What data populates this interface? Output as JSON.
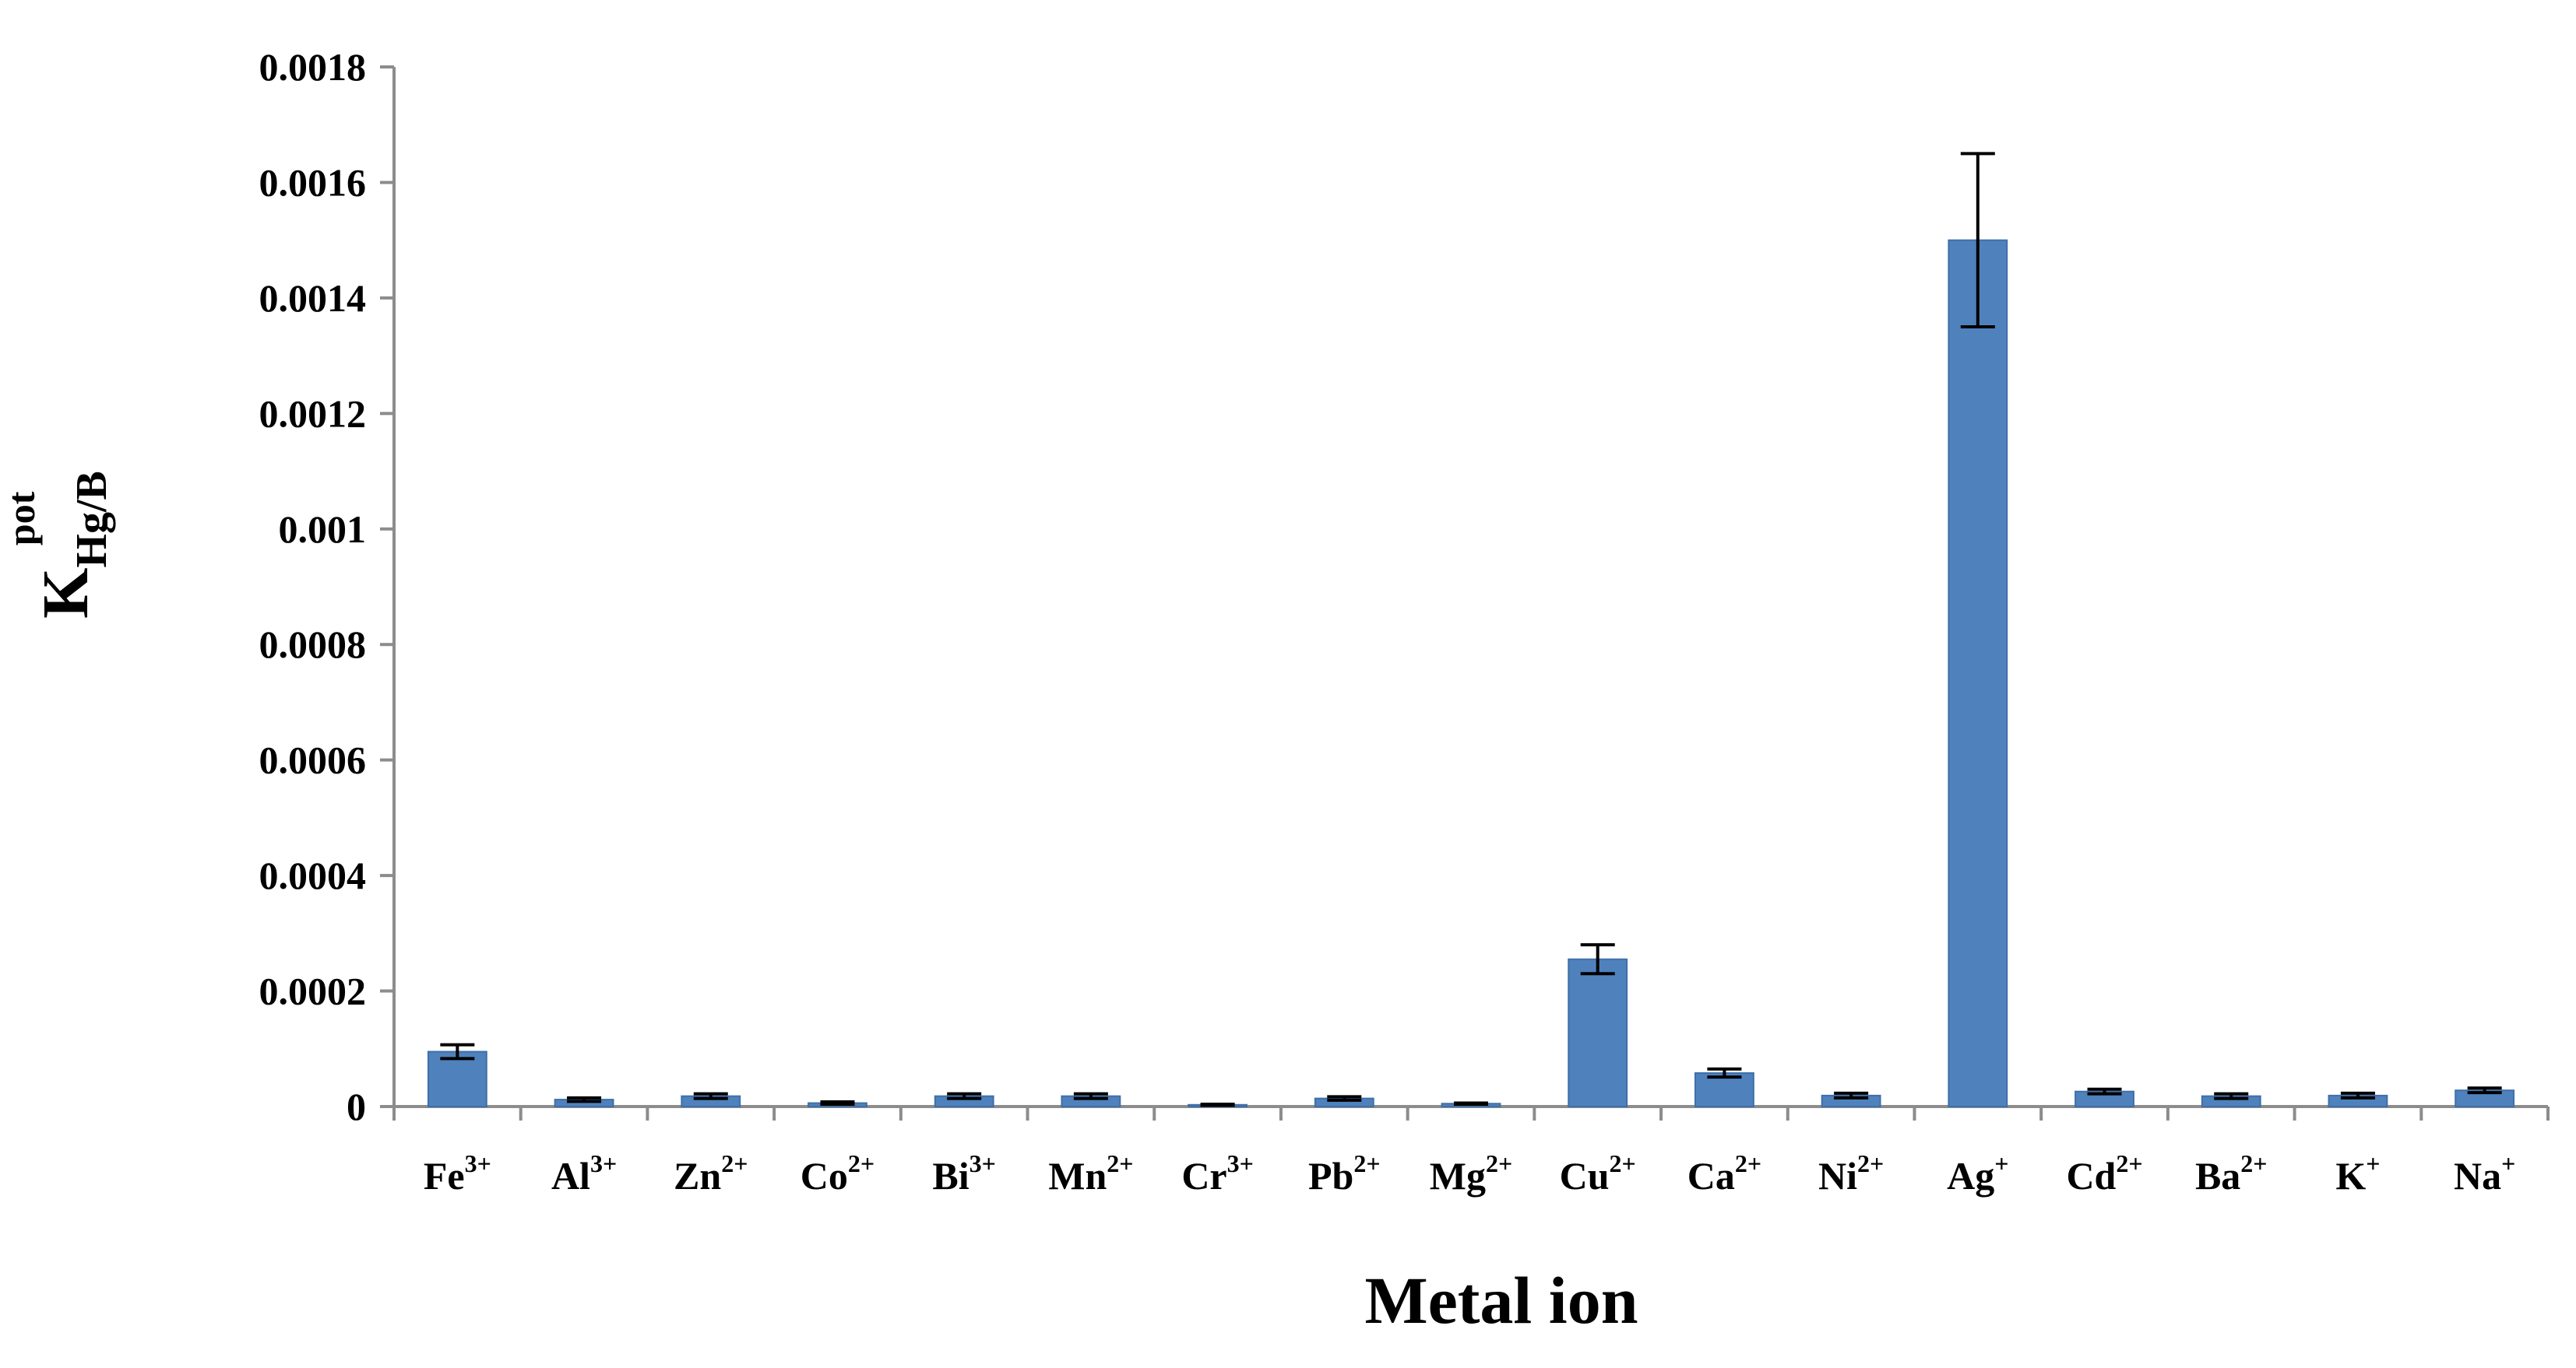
{
  "chart_data": {
    "type": "bar",
    "title": "",
    "xlabel": "Metal ion",
    "ylabel": {
      "main": "K",
      "sub": "Hg/B",
      "sup": "pot"
    },
    "ylim": [
      0,
      0.0018
    ],
    "yticks": [
      0,
      0.0002,
      0.0004,
      0.0006,
      0.0008,
      0.001,
      0.0012,
      0.0014,
      0.0016,
      0.0018
    ],
    "ytick_labels": [
      "0",
      "0.0002",
      "0.0004",
      "0.0006",
      "0.0008",
      "0.001",
      "0.0012",
      "0.0014",
      "0.0016",
      "0.0018"
    ],
    "grid": false,
    "legend": "none",
    "categories": [
      {
        "base": "Fe",
        "sup": "3+"
      },
      {
        "base": "Al",
        "sup": "3+"
      },
      {
        "base": "Zn",
        "sup": "2+"
      },
      {
        "base": "Co",
        "sup": "2+"
      },
      {
        "base": "Bi",
        "sup": "3+"
      },
      {
        "base": "Mn",
        "sup": "2+"
      },
      {
        "base": "Cr",
        "sup": "3+"
      },
      {
        "base": "Pb",
        "sup": "2+"
      },
      {
        "base": "Mg",
        "sup": "2+"
      },
      {
        "base": "Cu",
        "sup": "2+"
      },
      {
        "base": "Ca",
        "sup": "2+"
      },
      {
        "base": "Ni",
        "sup": "2+"
      },
      {
        "base": "Ag",
        "sup": "+"
      },
      {
        "base": "Cd",
        "sup": "2+"
      },
      {
        "base": "Ba",
        "sup": "2+"
      },
      {
        "base": "K",
        "sup": "+"
      },
      {
        "base": "Na",
        "sup": "+"
      }
    ],
    "values": [
      9.5e-05,
      1.2e-05,
      1.8e-05,
      6e-06,
      1.8e-05,
      1.8e-05,
      3e-06,
      1.4e-05,
      5e-06,
      0.000255,
      5.8e-05,
      1.9e-05,
      0.0015,
      2.6e-05,
      1.8e-05,
      1.9e-05,
      2.8e-05
    ],
    "errors": [
      1.2e-05,
      3e-06,
      4e-06,
      2e-06,
      4e-06,
      4e-06,
      1e-06,
      3e-06,
      1e-06,
      2.5e-05,
      7e-06,
      4e-06,
      0.00015,
      4e-06,
      4e-06,
      4e-06,
      4e-06
    ],
    "colors": {
      "bar": "#4f81bd",
      "bar_edge": "#3f6fa8",
      "axis": "#8c8c8c",
      "error": "#000000"
    }
  }
}
